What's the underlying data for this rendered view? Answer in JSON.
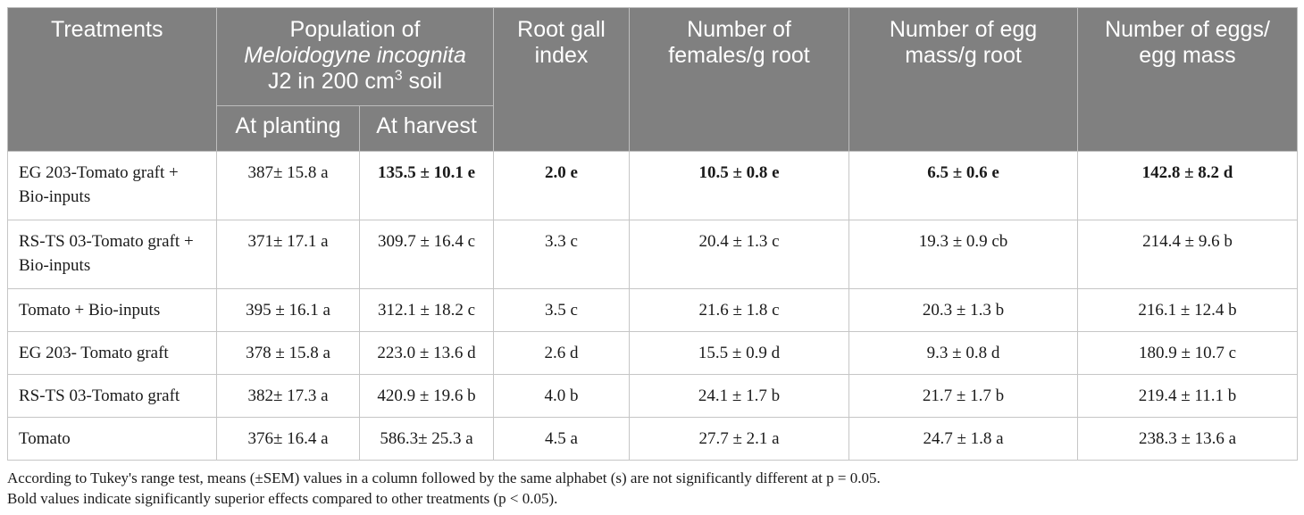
{
  "header": {
    "treatments": "Treatments",
    "population_line1": "Population of",
    "population_species": "Meloidogyne incognita",
    "population_line3_pre": "J2 in 200 cm",
    "population_line3_sup": "3",
    "population_line3_post": " soil",
    "at_planting": "At planting",
    "at_harvest": "At harvest",
    "root_gall": "Root gall index",
    "females": "Number of females/g root",
    "egg_mass": "Number of egg mass/g root",
    "eggs_per_mass": "Number of eggs/ egg mass"
  },
  "rows": [
    {
      "treatment": "EG 203-Tomato graft + Bio-inputs",
      "at_planting": "387± 15.8 a",
      "at_harvest": "135.5 ± 10.1 e",
      "root_gall": "2.0 e",
      "females": "10.5 ± 0.8 e",
      "egg_mass": "6.5 ± 0.6 e",
      "eggs_per_mass": "142.8 ± 8.2 d"
    },
    {
      "treatment": "RS-TS 03-Tomato graft + Bio-inputs",
      "at_planting": "371± 17.1 a",
      "at_harvest": "309.7 ± 16.4 c",
      "root_gall": "3.3 c",
      "females": "20.4 ± 1.3 c",
      "egg_mass": "19.3 ± 0.9 cb",
      "eggs_per_mass": "214.4 ± 9.6 b"
    },
    {
      "treatment": "Tomato + Bio-inputs",
      "at_planting": "395 ± 16.1 a",
      "at_harvest": "312.1 ± 18.2 c",
      "root_gall": "3.5 c",
      "females": "21.6 ± 1.8 c",
      "egg_mass": "20.3 ± 1.3 b",
      "eggs_per_mass": "216.1 ± 12.4 b"
    },
    {
      "treatment": "EG 203- Tomato graft",
      "at_planting": "378 ± 15.8 a",
      "at_harvest": "223.0 ± 13.6 d",
      "root_gall": "2.6 d",
      "females": "15.5 ± 0.9 d",
      "egg_mass": "9.3 ± 0.8 d",
      "eggs_per_mass": "180.9 ± 10.7 c"
    },
    {
      "treatment": "RS-TS 03-Tomato graft",
      "at_planting": "382± 17.3 a",
      "at_harvest": "420.9 ± 19.6 b",
      "root_gall": "4.0 b",
      "females": "24.1 ± 1.7 b",
      "egg_mass": "21.7 ± 1.7 b",
      "eggs_per_mass": "219.4 ± 11.1 b"
    },
    {
      "treatment": "Tomato",
      "at_planting": "376± 16.4 a",
      "at_harvest": "586.3± 25.3 a",
      "root_gall": "4.5 a",
      "females": "27.7 ± 2.1 a",
      "egg_mass": "24.7 ± 1.8 a",
      "eggs_per_mass": "238.3 ± 13.6 a"
    }
  ],
  "footnotes": {
    "line1": "According to Tukey's range test, means (±SEM) values in a column followed by the same alphabet (s) are not significantly different at p = 0.05.",
    "line2": "Bold values indicate significantly superior effects compared to other treatments (p < 0.05)."
  },
  "colors": {
    "header_bg": "#808080",
    "header_text": "#ffffff",
    "border": "#c6c6c6"
  }
}
